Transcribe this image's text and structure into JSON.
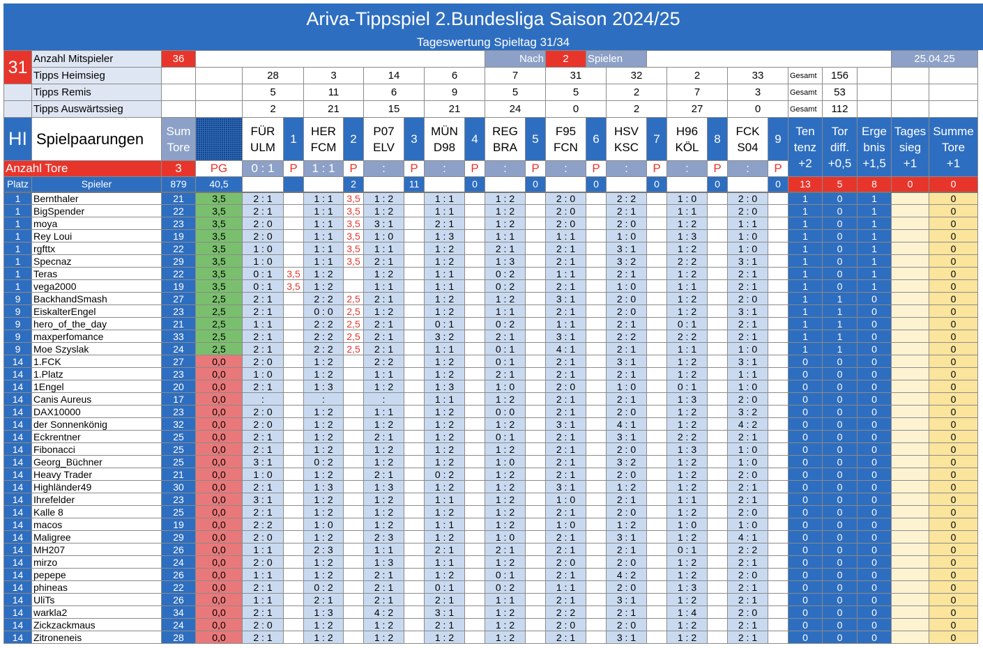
{
  "title": "Ariva-Tippspiel 2.Bundesliga Saison 2024/25",
  "subtitle": "Tageswertung Spieltag 31/34",
  "info": {
    "matchday": "31",
    "participants_label": "Anzahl Mitspieler",
    "participants": "36",
    "nach": "Nach",
    "after_games": "2",
    "spielen": "Spielen",
    "date": "25.04.25",
    "gesamt": "Gesamt"
  },
  "tips": {
    "home": {
      "label": "Tipps Heimsieg",
      "values": [
        "28",
        "3",
        "14",
        "6",
        "7",
        "31",
        "32",
        "2",
        "33"
      ],
      "total": "156"
    },
    "draw": {
      "label": "Tipps Remis",
      "values": [
        "5",
        "11",
        "6",
        "9",
        "5",
        "5",
        "2",
        "7",
        "3"
      ],
      "total": "53"
    },
    "away": {
      "label": "Tipps Auswärtssieg",
      "values": [
        "2",
        "21",
        "15",
        "21",
        "24",
        "0",
        "2",
        "27",
        "0"
      ],
      "total": "112"
    }
  },
  "header": {
    "hi": "HI",
    "spielpaarungen": "Spielpaarungen",
    "sum": "Sum",
    "tore": "Tore",
    "tenA": "Ten",
    "tenB": "tenz",
    "tenC": "+2",
    "torA": "Tor",
    "torB": "diff.",
    "torC": "+0,5",
    "ergA": "Erge",
    "ergB": "bnis",
    "ergC": "+1,5",
    "tagA": "Tages",
    "tagB": "sieg",
    "tagC": "+1",
    "sumA": "Summe",
    "sumB": "Tore",
    "sumC": "+1"
  },
  "matches": [
    {
      "home": "FÜR",
      "away": "ULM",
      "num": "1",
      "result": "0 : 1",
      "p": "P",
      "correct": ""
    },
    {
      "home": "HER",
      "away": "FCM",
      "num": "2",
      "result": "1 : 1",
      "p": "P",
      "correct": "2"
    },
    {
      "home": "P07",
      "away": "ELV",
      "num": "3",
      "result": ":",
      "p": "P",
      "correct": "11"
    },
    {
      "home": "MÜN",
      "away": "D98",
      "num": "4",
      "result": ":",
      "p": "P",
      "correct": "0"
    },
    {
      "home": "REG",
      "away": "BRA",
      "num": "5",
      "result": ":",
      "p": "P",
      "correct": "0"
    },
    {
      "home": "F95",
      "away": "FCN",
      "num": "6",
      "result": ":",
      "p": "P",
      "correct": "0"
    },
    {
      "home": "HSV",
      "away": "KSC",
      "num": "7",
      "result": ":",
      "p": "P",
      "correct": "0"
    },
    {
      "home": "H96",
      "away": "KÖL",
      "num": "8",
      "result": ":",
      "p": "P",
      "correct": "0"
    },
    {
      "home": "FCK",
      "away": "S04",
      "num": "9",
      "result": ":",
      "p": "P",
      "correct": "0"
    }
  ],
  "goals_row": {
    "label": "Anzahl Tore",
    "value": "3",
    "pg": "PG",
    "last_correct": "0"
  },
  "totals_row": {
    "platz": "Platz",
    "spieler": "Spieler",
    "sum": "879",
    "pg": "40,5",
    "ten": "13",
    "tor": "5",
    "erg": "8",
    "tag": "0",
    "sto": "0"
  },
  "players": [
    {
      "rank": "1",
      "name": "Bernthaler",
      "sum": "21",
      "pts": "3,5",
      "tips": [
        "2 : 1",
        "1 : 1",
        "1 : 2",
        "1 : 1",
        "1 : 2",
        "2 : 0",
        "2 : 2",
        "1 : 0",
        "2 : 0"
      ],
      "p1": "",
      "p2": "3,5",
      "ten": "1",
      "tor": "0",
      "erg": "1",
      "sto": "0"
    },
    {
      "rank": "1",
      "name": "BigSpender",
      "sum": "22",
      "pts": "3,5",
      "tips": [
        "2 : 1",
        "1 : 1",
        "1 : 2",
        "1 : 1",
        "1 : 2",
        "2 : 0",
        "2 : 1",
        "1 : 1",
        "2 : 0"
      ],
      "p1": "",
      "p2": "3,5",
      "ten": "1",
      "tor": "0",
      "erg": "1",
      "sto": "0"
    },
    {
      "rank": "1",
      "name": "moya",
      "sum": "23",
      "pts": "3,5",
      "tips": [
        "2 : 0",
        "1 : 1",
        "3 : 1",
        "2 : 1",
        "1 : 2",
        "2 : 0",
        "2 : 0",
        "1 : 2",
        "1 : 1"
      ],
      "p1": "",
      "p2": "3,5",
      "ten": "1",
      "tor": "0",
      "erg": "1",
      "sto": "0"
    },
    {
      "rank": "1",
      "name": "Rey Loui",
      "sum": "19",
      "pts": "3,5",
      "tips": [
        "2 : 0",
        "1 : 1",
        "1 : 0",
        "1 : 3",
        "1 : 1",
        "1 : 1",
        "1 : 0",
        "1 : 3",
        "1 : 0"
      ],
      "p1": "",
      "p2": "3,5",
      "ten": "1",
      "tor": "0",
      "erg": "1",
      "sto": "0"
    },
    {
      "rank": "1",
      "name": "rgfttx",
      "sum": "22",
      "pts": "3,5",
      "tips": [
        "1 : 0",
        "1 : 1",
        "1 : 1",
        "1 : 2",
        "2 : 1",
        "2 : 1",
        "3 : 1",
        "1 : 2",
        "1 : 0"
      ],
      "p1": "",
      "p2": "3,5",
      "ten": "1",
      "tor": "0",
      "erg": "1",
      "sto": "0"
    },
    {
      "rank": "1",
      "name": "Specnaz",
      "sum": "29",
      "pts": "3,5",
      "tips": [
        "1 : 0",
        "1 : 1",
        "2 : 1",
        "1 : 2",
        "1 : 3",
        "2 : 1",
        "3 : 2",
        "2 : 2",
        "3 : 1"
      ],
      "p1": "",
      "p2": "3,5",
      "ten": "1",
      "tor": "0",
      "erg": "1",
      "sto": "0"
    },
    {
      "rank": "1",
      "name": "Teras",
      "sum": "22",
      "pts": "3,5",
      "tips": [
        "0 : 1",
        "1 : 2",
        "1 : 2",
        "1 : 1",
        "0 : 2",
        "1 : 1",
        "2 : 1",
        "1 : 2",
        "2 : 1"
      ],
      "p1": "3,5",
      "p2": "",
      "ten": "1",
      "tor": "0",
      "erg": "1",
      "sto": "0"
    },
    {
      "rank": "1",
      "name": "vega2000",
      "sum": "19",
      "pts": "3,5",
      "tips": [
        "0 : 1",
        "1 : 2",
        "1 : 1",
        "1 : 1",
        "0 : 2",
        "2 : 1",
        "1 : 0",
        "1 : 1",
        "2 : 1"
      ],
      "p1": "3,5",
      "p2": "",
      "ten": "1",
      "tor": "0",
      "erg": "1",
      "sto": "0"
    },
    {
      "rank": "9",
      "name": "BackhandSmash",
      "sum": "27",
      "pts": "2,5",
      "tips": [
        "2 : 1",
        "2 : 2",
        "2 : 1",
        "1 : 2",
        "1 : 2",
        "3 : 1",
        "2 : 0",
        "1 : 2",
        "2 : 0"
      ],
      "p1": "",
      "p2": "2,5",
      "ten": "1",
      "tor": "1",
      "erg": "0",
      "sto": "0"
    },
    {
      "rank": "9",
      "name": "EiskalterEngel",
      "sum": "23",
      "pts": "2,5",
      "tips": [
        "2 : 1",
        "0 : 0",
        "1 : 2",
        "1 : 2",
        "1 : 1",
        "2 : 1",
        "2 : 0",
        "1 : 2",
        "3 : 1"
      ],
      "p1": "",
      "p2": "2,5",
      "ten": "1",
      "tor": "1",
      "erg": "0",
      "sto": "0"
    },
    {
      "rank": "9",
      "name": "hero_of_the_day",
      "sum": "21",
      "pts": "2,5",
      "tips": [
        "1 : 1",
        "2 : 2",
        "2 : 1",
        "0 : 1",
        "0 : 2",
        "1 : 1",
        "2 : 1",
        "0 : 1",
        "2 : 1"
      ],
      "p1": "",
      "p2": "2,5",
      "ten": "1",
      "tor": "1",
      "erg": "0",
      "sto": "0"
    },
    {
      "rank": "9",
      "name": "maxperfomance",
      "sum": "33",
      "pts": "2,5",
      "tips": [
        "2 : 1",
        "2 : 2",
        "2 : 1",
        "3 : 2",
        "2 : 1",
        "3 : 1",
        "2 : 2",
        "2 : 2",
        "2 : 1"
      ],
      "p1": "",
      "p2": "2,5",
      "ten": "1",
      "tor": "1",
      "erg": "0",
      "sto": "0"
    },
    {
      "rank": "9",
      "name": "Moe Szyslak",
      "sum": "24",
      "pts": "2,5",
      "tips": [
        "2 : 1",
        "2 : 2",
        "2 : 1",
        "1 : 1",
        "0 : 1",
        "4 : 1",
        "2 : 1",
        "1 : 1",
        "1 : 0"
      ],
      "p1": "",
      "p2": "2,5",
      "ten": "1",
      "tor": "1",
      "erg": "0",
      "sto": "0"
    },
    {
      "rank": "14",
      "name": "1.FCK",
      "sum": "27",
      "pts": "0,0",
      "tips": [
        "2 : 0",
        "1 : 2",
        "2 : 2",
        "1 : 2",
        "0 : 1",
        "2 : 1",
        "3 : 1",
        "1 : 2",
        "3 : 1"
      ],
      "p1": "",
      "p2": "",
      "ten": "0",
      "tor": "0",
      "erg": "0",
      "sto": "0"
    },
    {
      "rank": "14",
      "name": "1.Platz",
      "sum": "23",
      "pts": "0,0",
      "tips": [
        "1 : 0",
        "1 : 2",
        "1 : 1",
        "1 : 2",
        "2 : 1",
        "2 : 1",
        "2 : 1",
        "1 : 2",
        "1 : 1"
      ],
      "p1": "",
      "p2": "",
      "ten": "0",
      "tor": "0",
      "erg": "0",
      "sto": "0"
    },
    {
      "rank": "14",
      "name": "1Engel",
      "sum": "20",
      "pts": "0,0",
      "tips": [
        "2 : 1",
        "1 : 3",
        "1 : 2",
        "1 : 3",
        "1 : 0",
        "2 : 0",
        "1 : 0",
        "0 : 1",
        "1 : 0"
      ],
      "p1": "",
      "p2": "",
      "ten": "0",
      "tor": "0",
      "erg": "0",
      "sto": "0"
    },
    {
      "rank": "14",
      "name": "Canis Aureus",
      "sum": "17",
      "pts": "0,0",
      "tips": [
        ":",
        ":",
        ":",
        "1 : 1",
        "1 : 2",
        "2 : 1",
        "2 : 1",
        "1 : 3",
        "2 : 0"
      ],
      "p1": "",
      "p2": "",
      "ten": "0",
      "tor": "0",
      "erg": "0",
      "sto": "0"
    },
    {
      "rank": "14",
      "name": "DAX10000",
      "sum": "23",
      "pts": "0,0",
      "tips": [
        "2 : 0",
        "1 : 2",
        "1 : 1",
        "1 : 2",
        "0 : 0",
        "2 : 1",
        "2 : 0",
        "1 : 2",
        "3 : 2"
      ],
      "p1": "",
      "p2": "",
      "ten": "0",
      "tor": "0",
      "erg": "0",
      "sto": "0"
    },
    {
      "rank": "14",
      "name": "der Sonnenkönig",
      "sum": "32",
      "pts": "0,0",
      "tips": [
        "2 : 0",
        "1 : 2",
        "1 : 2",
        "1 : 2",
        "1 : 2",
        "3 : 1",
        "4 : 1",
        "1 : 2",
        "4 : 2"
      ],
      "p1": "",
      "p2": "",
      "ten": "0",
      "tor": "0",
      "erg": "0",
      "sto": "0"
    },
    {
      "rank": "14",
      "name": "Eckrentner",
      "sum": "25",
      "pts": "0,0",
      "tips": [
        "2 : 1",
        "1 : 2",
        "2 : 1",
        "1 : 2",
        "0 : 1",
        "2 : 1",
        "3 : 1",
        "2 : 2",
        "2 : 1"
      ],
      "p1": "",
      "p2": "",
      "ten": "0",
      "tor": "0",
      "erg": "0",
      "sto": "0"
    },
    {
      "rank": "14",
      "name": "Fibonacci",
      "sum": "25",
      "pts": "0,0",
      "tips": [
        "2 : 1",
        "1 : 2",
        "1 : 2",
        "1 : 2",
        "1 : 2",
        "2 : 1",
        "2 : 0",
        "1 : 3",
        "1 : 0"
      ],
      "p1": "",
      "p2": "",
      "ten": "0",
      "tor": "0",
      "erg": "0",
      "sto": "0"
    },
    {
      "rank": "14",
      "name": "Georg_Büchner",
      "sum": "25",
      "pts": "0,0",
      "tips": [
        "3 : 1",
        "0 : 2",
        "1 : 2",
        "1 : 2",
        "1 : 0",
        "2 : 1",
        "3 : 2",
        "1 : 2",
        "1 : 0"
      ],
      "p1": "",
      "p2": "",
      "ten": "0",
      "tor": "0",
      "erg": "0",
      "sto": "0"
    },
    {
      "rank": "14",
      "name": "Heavy Trader",
      "sum": "21",
      "pts": "0,0",
      "tips": [
        "1 : 0",
        "1 : 2",
        "2 : 1",
        "0 : 2",
        "1 : 2",
        "2 : 1",
        "2 : 0",
        "1 : 2",
        "2 : 0"
      ],
      "p1": "",
      "p2": "",
      "ten": "0",
      "tor": "0",
      "erg": "0",
      "sto": "0"
    },
    {
      "rank": "14",
      "name": "Highländer49",
      "sum": "30",
      "pts": "0,0",
      "tips": [
        "2 : 1",
        "1 : 3",
        "1 : 3",
        "1 : 2",
        "1 : 2",
        "3 : 1",
        "1 : 2",
        "1 : 2",
        "2 : 1"
      ],
      "p1": "",
      "p2": "",
      "ten": "0",
      "tor": "0",
      "erg": "0",
      "sto": "0"
    },
    {
      "rank": "14",
      "name": "Ihrefelder",
      "sum": "23",
      "pts": "0,0",
      "tips": [
        "3 : 1",
        "1 : 2",
        "1 : 2",
        "1 : 1",
        "1 : 2",
        "1 : 0",
        "2 : 1",
        "1 : 1",
        "2 : 1"
      ],
      "p1": "",
      "p2": "",
      "ten": "0",
      "tor": "0",
      "erg": "0",
      "sto": "0"
    },
    {
      "rank": "14",
      "name": "Kalle 8",
      "sum": "25",
      "pts": "0,0",
      "tips": [
        "2 : 1",
        "1 : 2",
        "1 : 2",
        "1 : 2",
        "1 : 2",
        "2 : 1",
        "2 : 0",
        "1 : 2",
        "2 : 0"
      ],
      "p1": "",
      "p2": "",
      "ten": "0",
      "tor": "0",
      "erg": "0",
      "sto": "0"
    },
    {
      "rank": "14",
      "name": "macos",
      "sum": "19",
      "pts": "0,0",
      "tips": [
        "2 : 2",
        "1 : 0",
        "1 : 2",
        "1 : 1",
        "1 : 2",
        "1 : 0",
        "1 : 2",
        "1 : 0",
        "1 : 0"
      ],
      "p1": "",
      "p2": "",
      "ten": "0",
      "tor": "0",
      "erg": "0",
      "sto": "0"
    },
    {
      "rank": "14",
      "name": "Maligree",
      "sum": "29",
      "pts": "0,0",
      "tips": [
        "2 : 0",
        "1 : 2",
        "2 : 3",
        "1 : 2",
        "1 : 0",
        "2 : 1",
        "3 : 1",
        "1 : 2",
        "4 : 1"
      ],
      "p1": "",
      "p2": "",
      "ten": "0",
      "tor": "0",
      "erg": "0",
      "sto": "0"
    },
    {
      "rank": "14",
      "name": "MH207",
      "sum": "26",
      "pts": "0,0",
      "tips": [
        "1 : 1",
        "2 : 3",
        "1 : 1",
        "2 : 1",
        "2 : 1",
        "2 : 1",
        "2 : 1",
        "0 : 1",
        "2 : 2"
      ],
      "p1": "",
      "p2": "",
      "ten": "0",
      "tor": "0",
      "erg": "0",
      "sto": "0"
    },
    {
      "rank": "14",
      "name": "mirzo",
      "sum": "24",
      "pts": "0,0",
      "tips": [
        "2 : 0",
        "1 : 2",
        "1 : 3",
        "1 : 1",
        "1 : 2",
        "2 : 0",
        "2 : 0",
        "1 : 2",
        "2 : 1"
      ],
      "p1": "",
      "p2": "",
      "ten": "0",
      "tor": "0",
      "erg": "0",
      "sto": "0"
    },
    {
      "rank": "14",
      "name": "pepepe",
      "sum": "26",
      "pts": "0,0",
      "tips": [
        "1 : 1",
        "1 : 2",
        "2 : 1",
        "1 : 2",
        "0 : 1",
        "2 : 1",
        "4 : 2",
        "1 : 2",
        "2 : 0"
      ],
      "p1": "",
      "p2": "",
      "ten": "0",
      "tor": "0",
      "erg": "0",
      "sto": "0"
    },
    {
      "rank": "14",
      "name": "phineas",
      "sum": "22",
      "pts": "0,0",
      "tips": [
        "2 : 1",
        "0 : 2",
        "2 : 1",
        "0 : 1",
        "0 : 2",
        "1 : 1",
        "2 : 0",
        "1 : 3",
        "2 : 1"
      ],
      "p1": "",
      "p2": "",
      "ten": "0",
      "tor": "0",
      "erg": "0",
      "sto": "0"
    },
    {
      "rank": "14",
      "name": "UliTs",
      "sum": "26",
      "pts": "0,0",
      "tips": [
        "1 : 1",
        "2 : 1",
        "2 : 1",
        "2 : 1",
        "1 : 1",
        "2 : 1",
        "3 : 1",
        "1 : 2",
        "2 : 1"
      ],
      "p1": "",
      "p2": "",
      "ten": "0",
      "tor": "0",
      "erg": "0",
      "sto": "0"
    },
    {
      "rank": "14",
      "name": "warkla2",
      "sum": "34",
      "pts": "0,0",
      "tips": [
        "2 : 1",
        "1 : 3",
        "4 : 2",
        "3 : 1",
        "1 : 2",
        "2 : 2",
        "2 : 1",
        "1 : 4",
        "2 : 0"
      ],
      "p1": "",
      "p2": "",
      "ten": "0",
      "tor": "0",
      "erg": "0",
      "sto": "0"
    },
    {
      "rank": "14",
      "name": "Zickzackmaus",
      "sum": "24",
      "pts": "0,0",
      "tips": [
        "2 : 0",
        "1 : 2",
        "1 : 2",
        "2 : 1",
        "1 : 2",
        "2 : 0",
        "2 : 0",
        "1 : 2",
        "2 : 1"
      ],
      "p1": "",
      "p2": "",
      "ten": "0",
      "tor": "0",
      "erg": "0",
      "sto": "0"
    },
    {
      "rank": "14",
      "name": "Zitroneneis",
      "sum": "28",
      "pts": "0,0",
      "tips": [
        "2 : 1",
        "1 : 2",
        "1 : 2",
        "1 : 2",
        "1 : 2",
        "2 : 1",
        "3 : 1",
        "1 : 2",
        "2 : 1"
      ],
      "p1": "",
      "p2": "",
      "ten": "0",
      "tor": "0",
      "erg": "0",
      "sto": "0"
    }
  ]
}
